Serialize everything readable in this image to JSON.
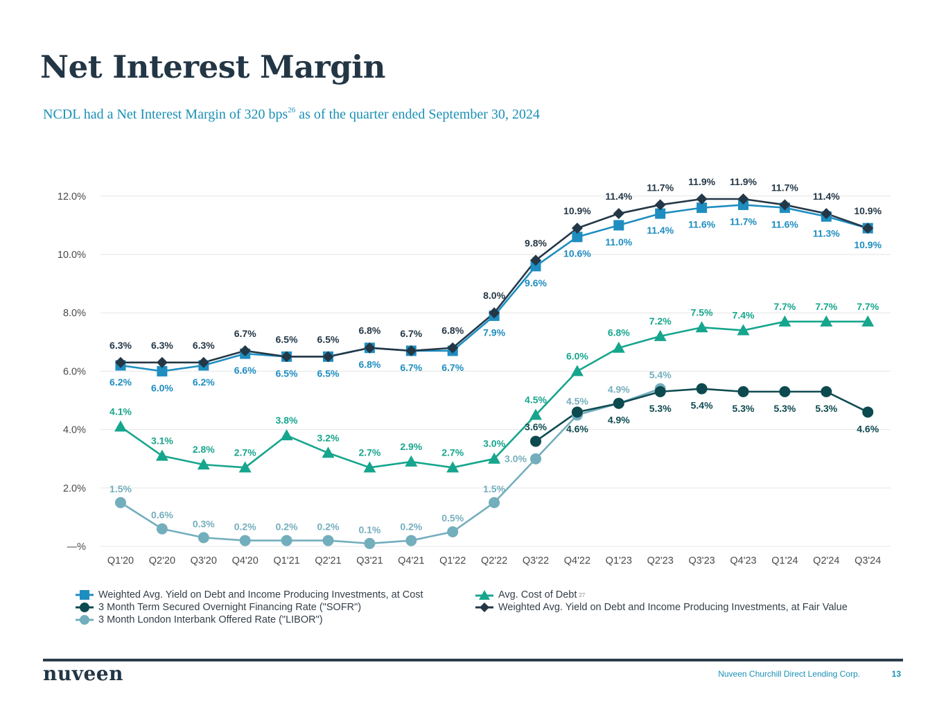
{
  "page": {
    "title": "Net Interest Margin",
    "subtitle_text": "NCDL had a Net Interest Margin of 320  bps",
    "subtitle_footnote": "26",
    "subtitle_rest": " as of the quarter ended September 30, 2024"
  },
  "footer": {
    "logo": "nuveen",
    "company": "Nuveen Churchill Direct Lending Corp.",
    "page_number": "13"
  },
  "colors": {
    "yield_cost": "#1e8dc0",
    "yield_fair": "#243746",
    "cost_of_debt": "#16a58d",
    "sofr": "#0d4a50",
    "libor": "#73aebd",
    "grid": "#e6e6e6",
    "axis_text": "#4a4a4a"
  },
  "chart_data": {
    "type": "line",
    "title": "",
    "xlabel": "",
    "ylabel": "",
    "ylim": [
      0,
      12
    ],
    "yticks": [
      0,
      2,
      4,
      6,
      8,
      10,
      12
    ],
    "ytick_labels": [
      "—%",
      "2.0%",
      "4.0%",
      "6.0%",
      "8.0%",
      "10.0%",
      "12.0%"
    ],
    "grid": true,
    "legend_position": "bottom",
    "categories": [
      "Q1'20",
      "Q2'20",
      "Q3'20",
      "Q4'20",
      "Q1'21",
      "Q2'21",
      "Q3'21",
      "Q4'21",
      "Q1'22",
      "Q2'22",
      "Q3'22",
      "Q4'22",
      "Q1'23",
      "Q2'23",
      "Q3'23",
      "Q4'23",
      "Q1'24",
      "Q2'24",
      "Q3'24"
    ],
    "series": [
      {
        "key": "yield_cost",
        "name": "Weighted Avg. Yield on Debt and Income Producing Investments, at Cost",
        "marker": "square",
        "values": [
          6.2,
          6.0,
          6.2,
          6.6,
          6.5,
          6.5,
          6.8,
          6.7,
          6.7,
          7.9,
          9.6,
          10.6,
          11.0,
          11.4,
          11.6,
          11.7,
          11.6,
          11.3,
          10.9
        ],
        "labels": [
          "6.2%",
          "6.0%",
          "6.2%",
          "6.6%",
          "6.5%",
          "6.5%",
          "6.8%",
          "6.7%",
          "6.7%",
          "7.9%",
          "9.6%",
          "10.6%",
          "11.0%",
          "11.4%",
          "11.6%",
          "11.7%",
          "11.6%",
          "11.3%",
          "10.9%"
        ],
        "label_position": "below"
      },
      {
        "key": "yield_fair",
        "name": "Weighted Avg. Yield on Debt and Income Producing Investments, at Fair Value",
        "marker": "diamond",
        "values": [
          6.3,
          6.3,
          6.3,
          6.7,
          6.5,
          6.5,
          6.8,
          6.7,
          6.8,
          8.0,
          9.8,
          10.9,
          11.4,
          11.7,
          11.9,
          11.9,
          11.7,
          11.4,
          10.9
        ],
        "labels": [
          "6.3%",
          "6.3%",
          "6.3%",
          "6.7%",
          "6.5%",
          "6.5%",
          "6.8%",
          "6.7%",
          "6.8%",
          "8.0%",
          "9.8%",
          "10.9%",
          "11.4%",
          "11.7%",
          "11.9%",
          "11.9%",
          "11.7%",
          "11.4%",
          "10.9%"
        ],
        "label_position": "above"
      },
      {
        "key": "cost_of_debt",
        "name": "Avg. Cost of Debt",
        "footnote": "27",
        "marker": "triangle",
        "values": [
          4.1,
          3.1,
          2.8,
          2.7,
          3.8,
          3.2,
          2.7,
          2.9,
          2.7,
          3.0,
          4.5,
          6.0,
          6.8,
          7.2,
          7.5,
          7.4,
          7.7,
          7.7,
          7.7
        ],
        "labels": [
          "4.1%",
          "3.1%",
          "2.8%",
          "2.7%",
          "3.8%",
          "3.2%",
          "2.7%",
          "2.9%",
          "2.7%",
          "3.0%",
          "4.5%",
          "6.0%",
          "6.8%",
          "7.2%",
          "7.5%",
          "7.4%",
          "7.7%",
          "7.7%",
          "7.7%"
        ],
        "label_position": "above"
      },
      {
        "key": "sofr",
        "name": "3 Month Term Secured Overnight Financing Rate (\"SOFR\")",
        "marker": "circle",
        "values": [
          null,
          null,
          null,
          null,
          null,
          null,
          null,
          null,
          null,
          null,
          3.6,
          4.6,
          4.9,
          5.3,
          5.4,
          5.3,
          5.3,
          5.3,
          4.6
        ],
        "labels": [
          null,
          null,
          null,
          null,
          null,
          null,
          null,
          null,
          null,
          null,
          "3.6%",
          "4.6%",
          "4.9%",
          "5.3%",
          "5.4%",
          "5.3%",
          "5.3%",
          "5.3%",
          "4.6%"
        ],
        "label_position": "below"
      },
      {
        "key": "libor",
        "name": "3 Month London Interbank Offered Rate (\"LIBOR\")",
        "marker": "circle",
        "values": [
          1.5,
          0.6,
          0.3,
          0.2,
          0.2,
          0.2,
          0.1,
          0.2,
          0.5,
          1.5,
          3.0,
          4.5,
          4.9,
          5.4,
          null,
          null,
          null,
          null,
          null
        ],
        "labels": [
          "1.5%",
          "0.6%",
          "0.3%",
          "0.2%",
          "0.2%",
          "0.2%",
          "0.1%",
          "0.2%",
          "0.5%",
          "1.5%",
          "3.0%",
          "4.5%",
          "4.9%",
          "5.4%",
          null,
          null,
          null,
          null,
          null
        ],
        "label_position": "above"
      }
    ]
  }
}
